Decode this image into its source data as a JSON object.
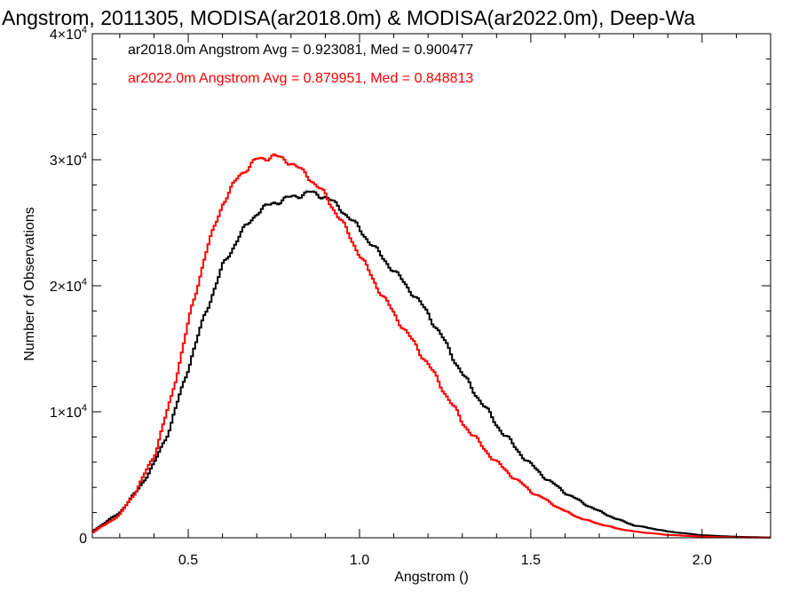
{
  "chart_data": {
    "type": "line",
    "title": "Angstrom, 2011305, MODISA(ar2018.0m) & MODISA(ar2022.0m), Deep-Wa",
    "xlabel": "Angstrom ()",
    "ylabel": "Number of Observations",
    "xlim": [
      0.22,
      2.2
    ],
    "ylim": [
      0,
      40000
    ],
    "x_ticks": [
      {
        "value": 0.5,
        "label": "0.5"
      },
      {
        "value": 1.0,
        "label": "1.0"
      },
      {
        "value": 1.5,
        "label": "1.5"
      },
      {
        "value": 2.0,
        "label": "2.0"
      }
    ],
    "y_ticks": [
      {
        "value": 0,
        "base": "0",
        "exp": ""
      },
      {
        "value": 10000,
        "base": "1×10",
        "exp": "4"
      },
      {
        "value": 20000,
        "base": "2×10",
        "exp": "4"
      },
      {
        "value": 30000,
        "base": "3×10",
        "exp": "4"
      },
      {
        "value": 40000,
        "base": "4×10",
        "exp": "4"
      }
    ],
    "annotations": [
      {
        "text": "ar2018.0m Angstrom Avg = 0.923081, Med = 0.900477",
        "color": "#000000"
      },
      {
        "text": "ar2022.0m Angstrom Avg = 0.879951, Med = 0.848813",
        "color": "#ff0000"
      }
    ],
    "series": [
      {
        "color": "#000000",
        "x": [
          0.22,
          0.3,
          0.35,
          0.4,
          0.45,
          0.5,
          0.55,
          0.6,
          0.65,
          0.7,
          0.75,
          0.8,
          0.85,
          0.9,
          0.95,
          1.0,
          1.05,
          1.1,
          1.15,
          1.2,
          1.25,
          1.3,
          1.35,
          1.4,
          1.45,
          1.5,
          1.55,
          1.6,
          1.65,
          1.7,
          1.75,
          1.8,
          1.9,
          2.0,
          2.1,
          2.2
        ],
        "values": [
          500,
          2000,
          3700,
          5800,
          9000,
          13500,
          17800,
          21500,
          24000,
          25800,
          26600,
          27000,
          27400,
          27100,
          26000,
          24500,
          22800,
          21200,
          19600,
          17800,
          15500,
          13000,
          11000,
          9000,
          7300,
          5800,
          4600,
          3600,
          2800,
          2100,
          1500,
          1000,
          500,
          200,
          80,
          20
        ]
      },
      {
        "color": "#ff0000",
        "x": [
          0.22,
          0.3,
          0.35,
          0.4,
          0.45,
          0.5,
          0.55,
          0.6,
          0.65,
          0.7,
          0.75,
          0.8,
          0.85,
          0.9,
          0.95,
          1.0,
          1.05,
          1.1,
          1.15,
          1.2,
          1.25,
          1.3,
          1.35,
          1.4,
          1.45,
          1.5,
          1.55,
          1.6,
          1.65,
          1.7,
          1.75,
          1.8,
          1.9,
          2.0,
          2.1,
          2.2
        ],
        "values": [
          400,
          1800,
          3800,
          6500,
          11000,
          17000,
          22500,
          26500,
          28800,
          30000,
          30300,
          29800,
          28700,
          27200,
          25000,
          22500,
          20000,
          17800,
          15800,
          13800,
          11500,
          9200,
          7500,
          6000,
          4800,
          3700,
          2900,
          2100,
          1500,
          1100,
          750,
          500,
          230,
          90,
          30,
          10
        ]
      }
    ]
  }
}
